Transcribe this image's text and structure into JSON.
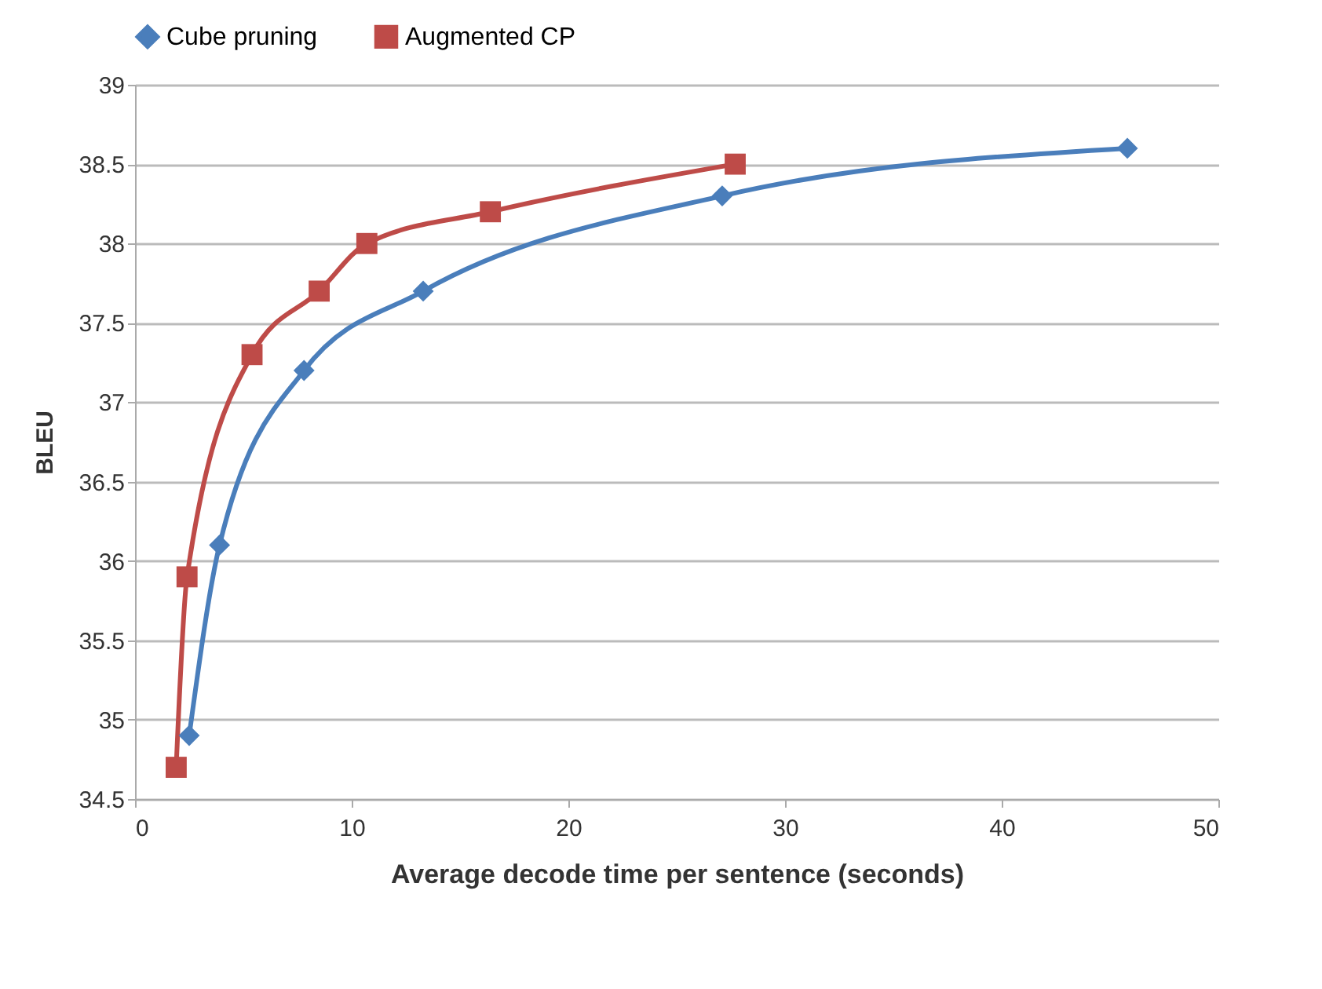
{
  "chart_data": {
    "type": "line",
    "xlabel": "Average decode time per sentence (seconds)",
    "ylabel": "BLEU",
    "xlim": [
      0,
      50
    ],
    "xticks": [
      0,
      10,
      20,
      30,
      40,
      50
    ],
    "ylim": [
      34.5,
      39
    ],
    "yticks": [
      34.5,
      35,
      35.5,
      36,
      36.5,
      37,
      37.5,
      38,
      38.5,
      39
    ],
    "grid": "y",
    "legend": "top",
    "series": [
      {
        "name": "Cube pruning",
        "color": "#4a7ebb",
        "marker": "diamond",
        "x": [
          2.5,
          3.9,
          7.8,
          13.3,
          27.1,
          45.8
        ],
        "values": [
          34.9,
          36.1,
          37.2,
          37.7,
          38.3,
          38.6
        ]
      },
      {
        "name": "Augmented CP",
        "color": "#be4b48",
        "marker": "square",
        "x": [
          1.9,
          2.4,
          5.4,
          8.5,
          10.7,
          16.4,
          27.7
        ],
        "values": [
          34.7,
          35.9,
          37.3,
          37.7,
          38.0,
          38.2,
          38.5
        ]
      }
    ]
  }
}
